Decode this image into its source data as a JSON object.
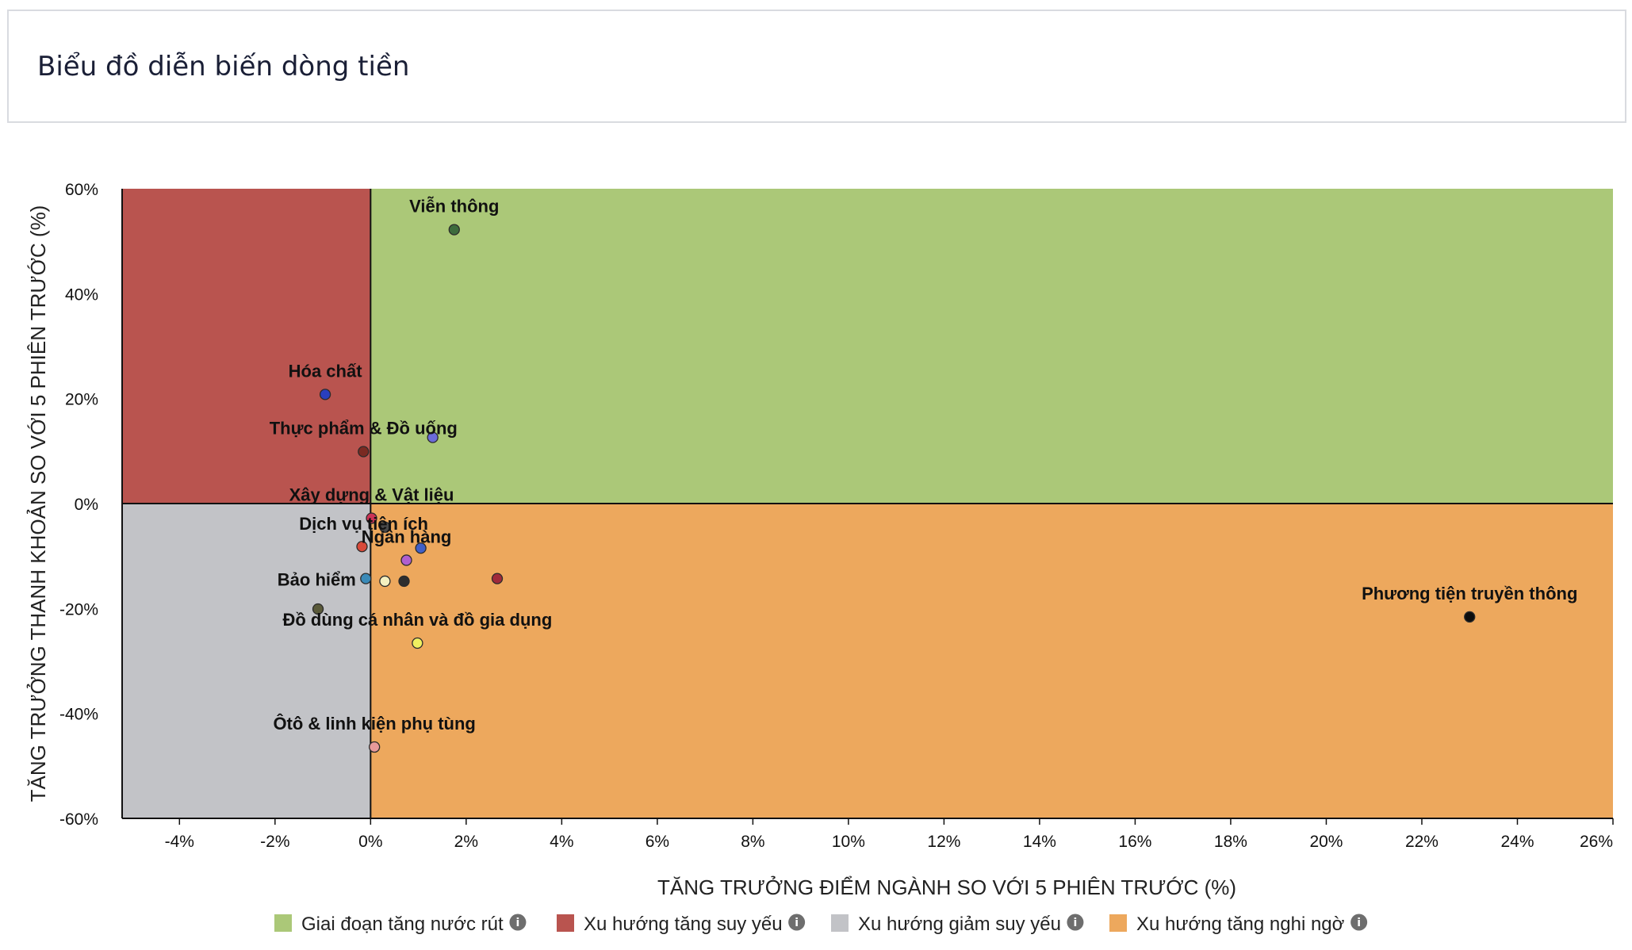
{
  "page": {
    "title": "Biểu đồ diễn biến dòng tiền"
  },
  "colors": {
    "quadrant_green": "#abc878",
    "quadrant_red": "#b9544f",
    "quadrant_gray": "#c2c3c7",
    "quadrant_orange": "#eda85d",
    "info_icon": "#6e6e6e",
    "axis_line": "#111111"
  },
  "chart_data": {
    "type": "scatter",
    "title": "",
    "xlabel": "TĂNG TRƯỞNG ĐIỂM NGÀNH SO VỚI 5 PHIÊN TRƯỚC (%)",
    "ylabel": "TĂNG TRƯỞNG THANH KHOẢN SO VỚI 5 PHIÊN TRƯỚC (%)",
    "xlim": [
      -5.2,
      26
    ],
    "ylim": [
      -60,
      60
    ],
    "x_ticks": [
      -4,
      -2,
      0,
      2,
      4,
      6,
      8,
      10,
      12,
      14,
      16,
      18,
      20,
      22,
      24,
      26
    ],
    "x_tick_labels": [
      "-4%",
      "-2%",
      "0%",
      "2%",
      "4%",
      "6%",
      "8%",
      "10%",
      "12%",
      "14%",
      "16%",
      "18%",
      "20%",
      "22%",
      "24%",
      "26%"
    ],
    "y_ticks": [
      60,
      40,
      20,
      0,
      -20,
      -40,
      -60
    ],
    "y_tick_labels": [
      "60%",
      "40%",
      "20%",
      "0%",
      "-20%",
      "-40%",
      "-60%"
    ],
    "grid": false,
    "legend_position": "bottom",
    "quadrants": [
      {
        "name": "Giai đoạn tăng nước rút",
        "color": "#abc878",
        "x_range": [
          0,
          26
        ],
        "y_range": [
          0,
          60
        ]
      },
      {
        "name": "Xu hướng tăng suy yếu",
        "color": "#b9544f",
        "x_range": [
          -5.2,
          0
        ],
        "y_range": [
          0,
          60
        ]
      },
      {
        "name": "Xu hướng giảm suy yếu",
        "color": "#c2c3c7",
        "x_range": [
          -5.2,
          0
        ],
        "y_range": [
          -60,
          0
        ]
      },
      {
        "name": "Xu hướng tăng nghi ngờ",
        "color": "#eda85d",
        "x_range": [
          0,
          26
        ],
        "y_range": [
          -60,
          0
        ]
      }
    ],
    "points": [
      {
        "label": "Viễn thông",
        "x": 1.75,
        "y": 52.2,
        "color": "#3d6b3d",
        "label_dx": 0,
        "label_dy": -22
      },
      {
        "label": "Hóa chất",
        "x": -0.95,
        "y": 20.8,
        "color": "#2a3fbf",
        "label_dx": 0,
        "label_dy": -22
      },
      {
        "label": "Thực phẩm & Đồ uống",
        "x": -0.15,
        "y": 9.9,
        "color": "#7a2a22",
        "label_dx": 0,
        "label_dy": -22
      },
      {
        "label": "",
        "x": 1.3,
        "y": 12.6,
        "color": "#6b6bd9"
      },
      {
        "label": "Xây dựng & Vật liệu",
        "x": 0.02,
        "y": -2.8,
        "color": "#cc3355",
        "label_dx": 0,
        "label_dy": -22
      },
      {
        "label": "",
        "x": 0.3,
        "y": -4.5,
        "color": "#4a4a4a"
      },
      {
        "label": "Dịch vụ tiện ích",
        "x": 1.05,
        "y": -8.5,
        "color": "#4060c8",
        "label_dx": -72,
        "label_dy": -23
      },
      {
        "label": "",
        "x": -0.18,
        "y": -8.2,
        "color": "#d84a3a"
      },
      {
        "label": "Ngân hàng",
        "x": 0.75,
        "y": -10.8,
        "color": "#b060d0",
        "label_dx": 0,
        "label_dy": -22
      },
      {
        "label": "",
        "x": 2.65,
        "y": -14.3,
        "color": "#a02a3a"
      },
      {
        "label": "Bảo hiểm",
        "x": -0.1,
        "y": -14.3,
        "color": "#3a8ab8",
        "label_dx": -62,
        "label_dy": 9
      },
      {
        "label": "",
        "x": 0.3,
        "y": -14.8,
        "color": "#f4f0c0"
      },
      {
        "label": "",
        "x": 0.7,
        "y": -14.8,
        "color": "#2e2e2e"
      },
      {
        "label": "",
        "x": -1.1,
        "y": -20.1,
        "color": "#5a5a3a"
      },
      {
        "label": "Phương tiện truyền thông",
        "x": 23.0,
        "y": -21.6,
        "color": "#0d0d0d",
        "label_dx": 0,
        "label_dy": -22
      },
      {
        "label": "Đồ dùng cá nhân và đồ gia dụng",
        "x": 0.98,
        "y": -26.6,
        "color": "#f0f060",
        "label_dx": 0,
        "label_dy": -22
      },
      {
        "label": "Ôtô & linh kiện phụ tùng",
        "x": 0.08,
        "y": -46.4,
        "color": "#e89a9a",
        "label_dx": 0,
        "label_dy": -22
      }
    ]
  },
  "legend": {
    "items": [
      {
        "label": "Giai đoạn tăng nước rút",
        "color": "#abc878",
        "icon": "info-icon"
      },
      {
        "label": "Xu hướng tăng suy yếu",
        "color": "#b9544f",
        "icon": "info-icon"
      },
      {
        "label": "Xu hướng giảm suy yếu",
        "color": "#c2c3c7",
        "icon": "info-icon"
      },
      {
        "label": "Xu hướng tăng nghi ngờ",
        "color": "#eda85d",
        "icon": "info-icon"
      }
    ],
    "info_glyph": "i"
  }
}
